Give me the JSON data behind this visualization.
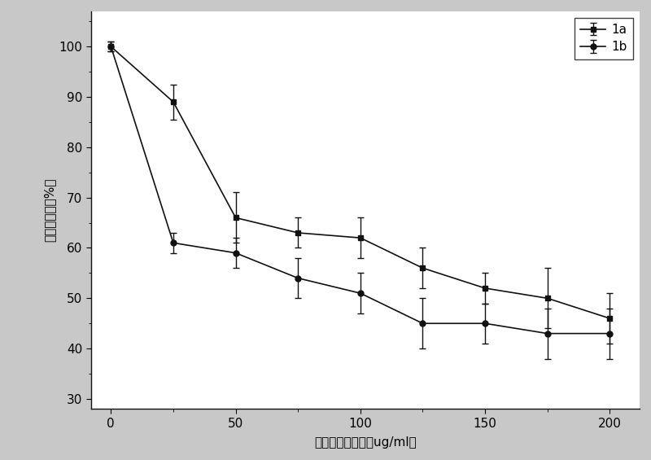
{
  "x": [
    0,
    25,
    50,
    75,
    100,
    125,
    150,
    175,
    200
  ],
  "y_1a": [
    100,
    89,
    66,
    63,
    62,
    56,
    52,
    50,
    46
  ],
  "y_1b": [
    100,
    61,
    59,
    54,
    51,
    45,
    45,
    43,
    43
  ],
  "err_1a": [
    1.0,
    3.5,
    5.0,
    3.0,
    4.0,
    4.0,
    3.0,
    6.0,
    5.0
  ],
  "err_1b": [
    1.0,
    2.0,
    3.0,
    4.0,
    4.0,
    5.0,
    4.0,
    5.0,
    5.0
  ],
  "xlabel": "阳离子脂质浓度（ug/ml）",
  "ylabel": "细胞存活率（%）",
  "xlim": [
    -8,
    212
  ],
  "ylim": [
    28,
    107
  ],
  "yticks": [
    30,
    40,
    50,
    60,
    70,
    80,
    90,
    100
  ],
  "xticks": [
    0,
    50,
    100,
    150,
    200
  ],
  "minor_xticks": [
    25,
    75,
    125,
    175
  ],
  "line_color": "#111111",
  "plot_bg": "#ffffff",
  "fig_bg": "#c8c8c8",
  "legend_bg": "#ffffff",
  "legend_labels": [
    "1a",
    "1b"
  ],
  "label_fontsize": 11,
  "tick_fontsize": 11,
  "legend_fontsize": 11
}
